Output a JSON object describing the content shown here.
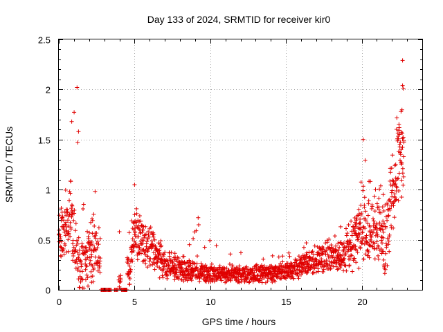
{
  "chart_data": {
    "type": "scatter",
    "title": "Day 133 of 2024, SRMTID for receiver kir0",
    "xlabel": "GPS time / hours",
    "ylabel": "SRMTID / TECUs",
    "xlim": [
      0,
      24
    ],
    "ylim": [
      0,
      2.5
    ],
    "xticks": [
      0,
      5,
      10,
      15,
      20
    ],
    "yticks": [
      0,
      0.5,
      1,
      1.5,
      2,
      2.5
    ],
    "grid": true,
    "marker": "+",
    "color": "#e00000",
    "envelope": [
      {
        "x": 0.0,
        "base": 0.45,
        "spread": 0.25,
        "max": 0.8
      },
      {
        "x": 0.5,
        "base": 0.6,
        "spread": 0.35,
        "max": 1.05
      },
      {
        "x": 0.8,
        "base": 0.7,
        "spread": 0.45,
        "max": 1.68
      },
      {
        "x": 1.2,
        "base": 0.35,
        "spread": 0.35,
        "max": 2.02
      },
      {
        "x": 1.6,
        "base": 0.2,
        "spread": 0.3,
        "max": 0.9
      },
      {
        "x": 2.2,
        "base": 0.45,
        "spread": 0.4,
        "max": 1.18
      },
      {
        "x": 2.6,
        "base": 0.3,
        "spread": 0.3,
        "max": 0.9
      },
      {
        "x": 3.0,
        "base": 0.0,
        "spread": 0.0,
        "max": 0.0
      },
      {
        "x": 4.0,
        "base": 0.05,
        "spread": 0.2,
        "max": 0.58
      },
      {
        "x": 4.7,
        "base": 0.2,
        "spread": 0.2,
        "max": 0.6
      },
      {
        "x": 5.0,
        "base": 0.6,
        "spread": 0.35,
        "max": 1.05
      },
      {
        "x": 6.0,
        "base": 0.4,
        "spread": 0.25,
        "max": 0.65
      },
      {
        "x": 7.0,
        "base": 0.25,
        "spread": 0.18,
        "max": 0.45
      },
      {
        "x": 9.0,
        "base": 0.18,
        "spread": 0.12,
        "max": 0.72
      },
      {
        "x": 11.0,
        "base": 0.16,
        "spread": 0.1,
        "max": 0.35
      },
      {
        "x": 13.0,
        "base": 0.15,
        "spread": 0.1,
        "max": 0.4
      },
      {
        "x": 15.0,
        "base": 0.18,
        "spread": 0.1,
        "max": 0.35
      },
      {
        "x": 17.0,
        "base": 0.3,
        "spread": 0.15,
        "max": 0.55
      },
      {
        "x": 18.5,
        "base": 0.35,
        "spread": 0.18,
        "max": 0.6
      },
      {
        "x": 19.5,
        "base": 0.45,
        "spread": 0.35,
        "max": 0.9
      },
      {
        "x": 20.0,
        "base": 0.7,
        "spread": 0.45,
        "max": 1.5
      },
      {
        "x": 20.5,
        "base": 0.6,
        "spread": 0.4,
        "max": 1.25
      },
      {
        "x": 21.0,
        "base": 0.7,
        "spread": 0.45,
        "max": 1.3
      },
      {
        "x": 21.5,
        "base": 0.4,
        "spread": 0.4,
        "max": 1.0
      },
      {
        "x": 22.0,
        "base": 0.9,
        "spread": 0.5,
        "max": 1.5
      },
      {
        "x": 22.5,
        "base": 1.3,
        "spread": 0.45,
        "max": 2.29
      },
      {
        "x": 22.8,
        "base": 1.3,
        "spread": 0.45,
        "max": 1.8
      }
    ],
    "notable_points": [
      {
        "x": 1.2,
        "y": 2.02
      },
      {
        "x": 0.85,
        "y": 1.68
      },
      {
        "x": 1.3,
        "y": 1.58
      },
      {
        "x": 22.7,
        "y": 2.29
      },
      {
        "x": 22.7,
        "y": 2.04
      },
      {
        "x": 22.75,
        "y": 2.01
      },
      {
        "x": 9.2,
        "y": 0.72
      },
      {
        "x": 20.1,
        "y": 1.5
      },
      {
        "x": 22.6,
        "y": 1.78
      },
      {
        "x": 4.0,
        "y": 0.58
      },
      {
        "x": 5.0,
        "y": 1.05
      }
    ],
    "x_end": 22.8,
    "sample_step_hours": 0.018
  }
}
